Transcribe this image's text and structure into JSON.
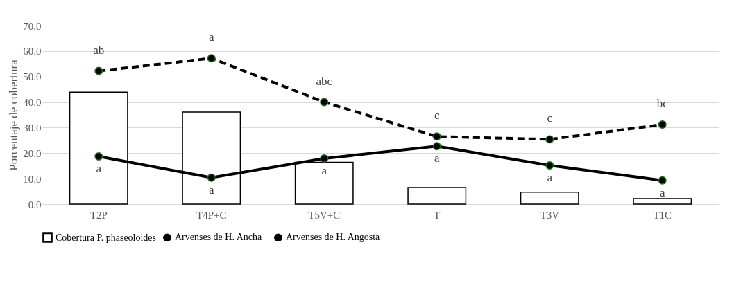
{
  "chart_data": {
    "type": "bar",
    "ylabel": "Porcentaje de cobertura",
    "categories": [
      "T2P",
      "T4P+C",
      "T5V+C",
      "T",
      "T3V",
      "T1C"
    ],
    "series": [
      {
        "name": "Cobertura P. phaseoloides",
        "color": "#ffffff",
        "values": [
          43.9,
          36.1,
          16.4,
          6.5,
          4.7,
          2.2
        ]
      },
      {
        "name": "Arvenses de H. Ancha",
        "type": "line",
        "color": "#000000",
        "line_style": "dashed",
        "values": [
          52.2,
          57.2,
          40.0,
          26.5,
          25.4,
          31.2
        ]
      },
      {
        "name": "Arvenses de H. Angosta",
        "type": "line",
        "color": "#000000",
        "line_style": "solid",
        "values": [
          18.7,
          10.4,
          17.9,
          22.7,
          15.2,
          9.3
        ]
      }
    ],
    "ylim": [
      0,
      70
    ],
    "yticks": [
      {
        "value": 0,
        "label": "0.0"
      },
      {
        "value": 10,
        "label": "10.0"
      },
      {
        "value": 20,
        "label": "20.0"
      },
      {
        "value": 30,
        "label": "30.0"
      },
      {
        "value": 40,
        "label": "40.0"
      },
      {
        "value": 50,
        "label": "50.0"
      },
      {
        "value": 60,
        "label": "60.0"
      },
      {
        "value": 70,
        "label": "70.0"
      }
    ],
    "grid": "y",
    "legend": "bottom",
    "marker": "circle",
    "annotations": [
      {
        "text": "ab",
        "x": "T2P",
        "y": 52.2
      },
      {
        "text": "a",
        "x": "T4P+C",
        "y": 57.2
      },
      {
        "text": "abc",
        "x": "T5V+C",
        "y": 40.0
      },
      {
        "text": "c",
        "x": "T",
        "y": 26.5
      },
      {
        "text": "c",
        "x": "T3V",
        "y": 25.4
      },
      {
        "text": "bc",
        "x": "T1C",
        "y": 31.2
      },
      {
        "text": "a",
        "x": "T2P",
        "y": 18.7
      },
      {
        "text": "a",
        "x": "T4P+C",
        "y": 10.4
      },
      {
        "text": "a",
        "x": "T5V+C",
        "y": 17.9
      },
      {
        "text": "a",
        "x": "T",
        "y": 22.7
      },
      {
        "text": "a",
        "x": "T3V",
        "y": 15.2
      },
      {
        "text": "a",
        "x": "T1C",
        "y": 9.3
      }
    ]
  }
}
